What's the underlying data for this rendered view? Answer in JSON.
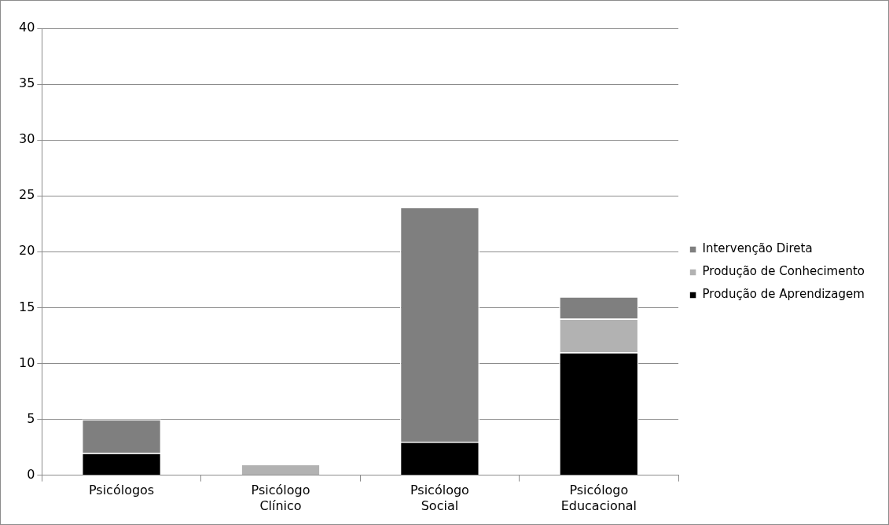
{
  "chart_data": {
    "type": "bar",
    "stacked": true,
    "categories": [
      "Psicólogos",
      "Psicólogo Clínico",
      "Psicólogo Social",
      "Psicólogo Educacional"
    ],
    "series": [
      {
        "name": "Produção de Aprendizagem",
        "color": "#000000",
        "values": [
          2,
          0,
          3,
          11
        ]
      },
      {
        "name": "Produção de Conhecimento",
        "color": "#b2b2b2",
        "values": [
          0,
          1,
          0,
          3
        ]
      },
      {
        "name": "Intervenção Direta",
        "color": "#7f7f7f",
        "values": [
          3,
          0,
          21,
          2
        ]
      }
    ],
    "ylim": [
      0,
      40
    ],
    "yticks": [
      0,
      5,
      10,
      15,
      20,
      25,
      30,
      35,
      40
    ],
    "grid": "y",
    "legend": "right"
  }
}
